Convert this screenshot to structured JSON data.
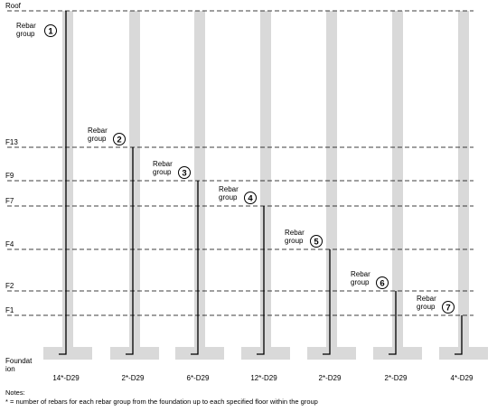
{
  "levels": [
    {
      "label": "Roof"
    },
    {
      "label": "F13"
    },
    {
      "label": "F9"
    },
    {
      "label": "F7"
    },
    {
      "label": "F4"
    },
    {
      "label": "F2"
    },
    {
      "label": "F1"
    }
  ],
  "foundation_label": [
    "Foundat",
    "ion"
  ],
  "columns": [
    {
      "group_label": [
        "Rebar",
        "group"
      ],
      "number": "1",
      "rebar": "14*-D29",
      "top_level": "Roof"
    },
    {
      "group_label": [
        "Rebar",
        "group"
      ],
      "number": "2",
      "rebar": "2*-D29",
      "top_level": "F13"
    },
    {
      "group_label": [
        "Rebar",
        "group"
      ],
      "number": "3",
      "rebar": "6*-D29",
      "top_level": "F9"
    },
    {
      "group_label": [
        "Rebar",
        "group"
      ],
      "number": "4",
      "rebar": "12*-D29",
      "top_level": "F7"
    },
    {
      "group_label": [
        "Rebar",
        "group"
      ],
      "number": "5",
      "rebar": "2*-D29",
      "top_level": "F4"
    },
    {
      "group_label": [
        "Rebar",
        "group"
      ],
      "number": "6",
      "rebar": "2*-D29",
      "top_level": "F2"
    },
    {
      "group_label": [
        "Rebar",
        "group"
      ],
      "number": "7",
      "rebar": "4*-D29",
      "top_level": "F1"
    }
  ],
  "notes": {
    "title": "Notes:",
    "line1": "* = number of rebars for each rebar group from the foundation up to each specified floor within the group"
  },
  "colors": {
    "column": "#d9d9d9",
    "rebar": "#000000",
    "level_line": "#000000"
  }
}
